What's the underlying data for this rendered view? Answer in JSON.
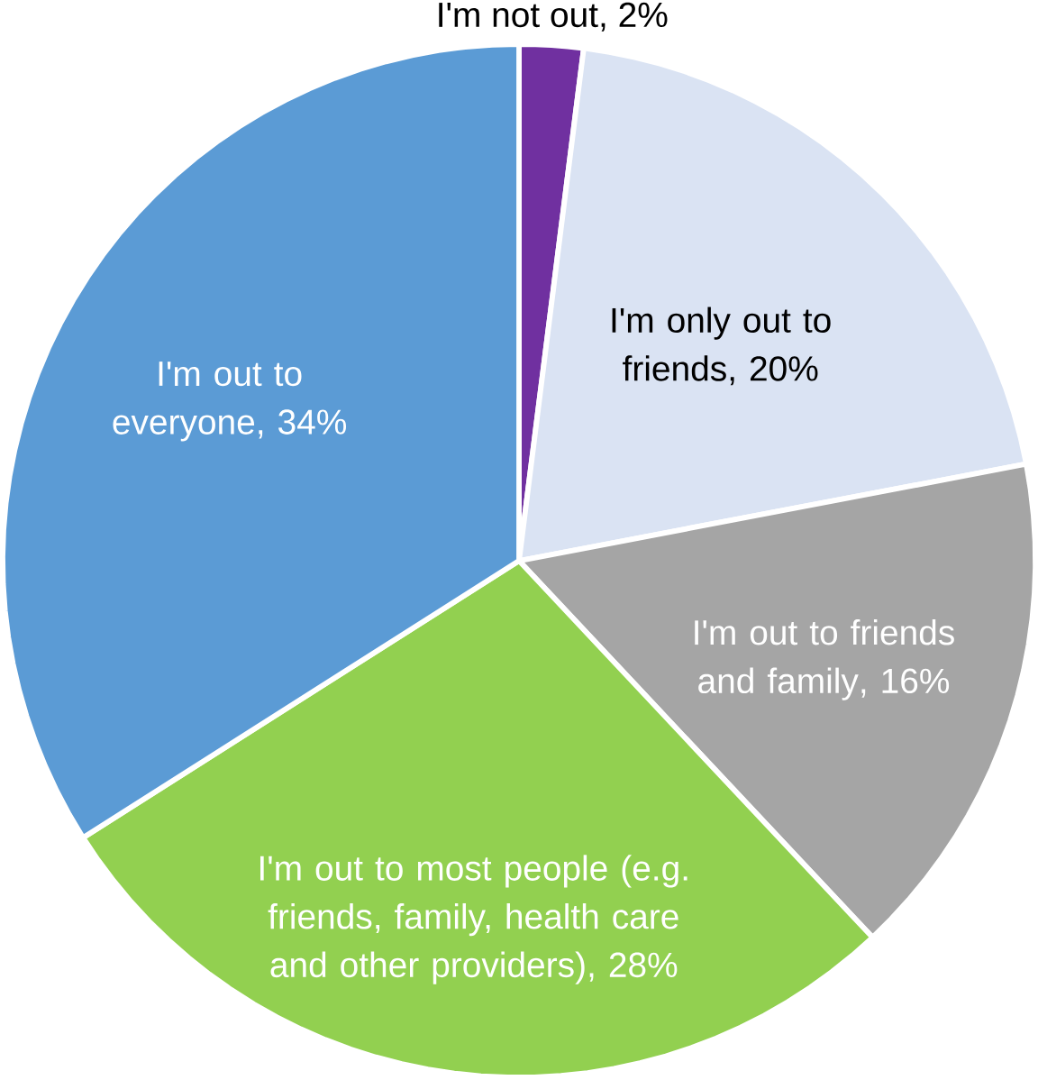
{
  "chart_data": {
    "type": "pie",
    "categories": [
      "I'm not out",
      "I'm only out to friends",
      "I'm out to friends and family",
      "I'm out to most people (e.g. friends, family, health care and other providers)",
      "I'm out to everyone"
    ],
    "values": [
      2,
      20,
      16,
      28,
      34
    ],
    "value_labels": [
      ", 2%",
      ", 20%",
      ", 16%",
      ", 28%",
      ", 34%"
    ],
    "colors": [
      "#7030a0",
      "#dae3f3",
      "#a5a5a5",
      "#92d050",
      "#5b9bd5"
    ]
  }
}
